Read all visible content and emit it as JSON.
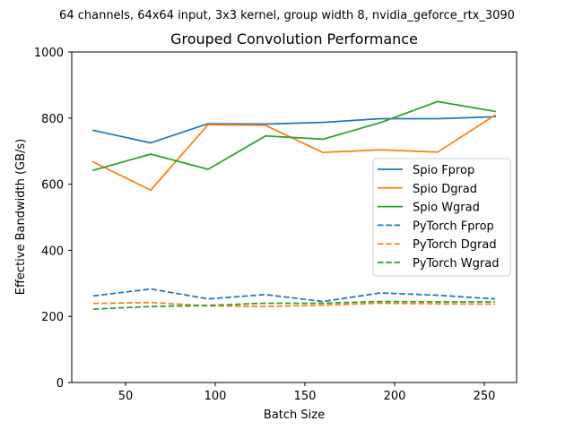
{
  "chart_data": {
    "type": "line",
    "suptitle": "64 channels, 64x64 input, 3x3 kernel, group width 8, nvidia_geforce_rtx_3090",
    "title": "Grouped Convolution Performance",
    "xlabel": "Batch Size",
    "ylabel": "Effective Bandwidth (GB/s)",
    "xlim": [
      20,
      268
    ],
    "ylim": [
      0,
      1000
    ],
    "xticks": [
      50,
      100,
      150,
      200,
      250
    ],
    "yticks": [
      0,
      200,
      400,
      600,
      800,
      1000
    ],
    "grid": false,
    "legend_position": "center-right",
    "x": [
      32,
      64,
      96,
      128,
      160,
      192,
      224,
      256
    ],
    "series": [
      {
        "name": "Spio Fprop",
        "color": "#1f77b4",
        "style": "solid",
        "values": [
          763,
          725,
          783,
          782,
          787,
          798,
          798,
          804
        ]
      },
      {
        "name": "Spio Dgrad",
        "color": "#ff7f0e",
        "style": "solid",
        "values": [
          667,
          582,
          780,
          778,
          696,
          704,
          697,
          809
        ]
      },
      {
        "name": "Spio Wgrad",
        "color": "#2ca02c",
        "style": "solid",
        "values": [
          642,
          691,
          645,
          746,
          736,
          786,
          850,
          820
        ]
      },
      {
        "name": "PyTorch Fprop",
        "color": "#1f77b4",
        "style": "dashed",
        "values": [
          262,
          283,
          253,
          266,
          245,
          271,
          264,
          253
        ]
      },
      {
        "name": "PyTorch Dgrad",
        "color": "#ff7f0e",
        "style": "dashed",
        "values": [
          239,
          242,
          232,
          230,
          234,
          240,
          238,
          237
        ]
      },
      {
        "name": "PyTorch Wgrad",
        "color": "#2ca02c",
        "style": "dashed",
        "values": [
          222,
          230,
          233,
          240,
          240,
          245,
          244,
          244
        ]
      }
    ]
  }
}
